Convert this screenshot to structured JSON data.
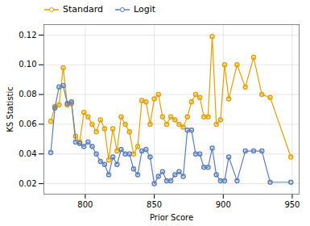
{
  "chart_data": {
    "type": "line",
    "x": [
      775,
      778,
      781,
      784,
      787,
      790,
      793,
      796,
      799,
      802,
      805,
      808,
      811,
      814,
      817,
      820,
      823,
      826,
      829,
      832,
      835,
      838,
      841,
      844,
      847,
      850,
      853,
      856,
      859,
      862,
      865,
      868,
      871,
      874,
      877,
      880,
      883,
      886,
      889,
      892,
      895,
      898,
      901,
      904,
      910,
      916,
      922,
      928,
      934,
      949
    ],
    "series": [
      {
        "name": "Standard",
        "color": "#E8A000",
        "marker": "circle",
        "values": [
          0.062,
          0.072,
          0.073,
          0.098,
          0.073,
          0.074,
          0.052,
          0.048,
          0.068,
          0.065,
          0.06,
          0.055,
          0.063,
          0.057,
          0.036,
          0.057,
          0.042,
          0.065,
          0.06,
          0.055,
          0.04,
          0.045,
          0.076,
          0.075,
          0.06,
          0.077,
          0.08,
          0.065,
          0.06,
          0.065,
          0.063,
          0.06,
          0.058,
          0.065,
          0.075,
          0.08,
          0.078,
          0.065,
          0.065,
          0.119,
          0.06,
          0.063,
          0.1,
          0.077,
          0.1,
          0.085,
          0.105,
          0.08,
          0.078,
          0.038
        ]
      },
      {
        "name": "Logit",
        "color": "#5B7FBF",
        "marker": "circle",
        "values": [
          0.041,
          0.071,
          0.085,
          0.086,
          0.074,
          0.075,
          0.048,
          0.047,
          0.045,
          0.048,
          0.045,
          0.04,
          0.035,
          0.033,
          0.026,
          0.038,
          0.033,
          0.043,
          0.04,
          0.04,
          0.03,
          0.026,
          0.042,
          0.043,
          0.038,
          0.02,
          0.025,
          0.028,
          0.022,
          0.022,
          0.026,
          0.028,
          0.025,
          0.056,
          0.056,
          0.04,
          0.04,
          0.031,
          0.031,
          0.044,
          0.026,
          0.022,
          0.022,
          0.038,
          0.022,
          0.042,
          0.042,
          0.042,
          0.021,
          0.021
        ]
      }
    ],
    "xlabel": "Prior Score",
    "ylabel": "KS Statistic",
    "xlim": [
      770,
      955
    ],
    "ylim": [
      0.013,
      0.127
    ],
    "xticks": [
      800,
      850,
      900,
      950
    ],
    "yticks": [
      0.02,
      0.04,
      0.06,
      0.08,
      {
        "value": 0.1,
        "label": "0.10"
      },
      0.12
    ],
    "grid": true,
    "legend": "upper left"
  }
}
